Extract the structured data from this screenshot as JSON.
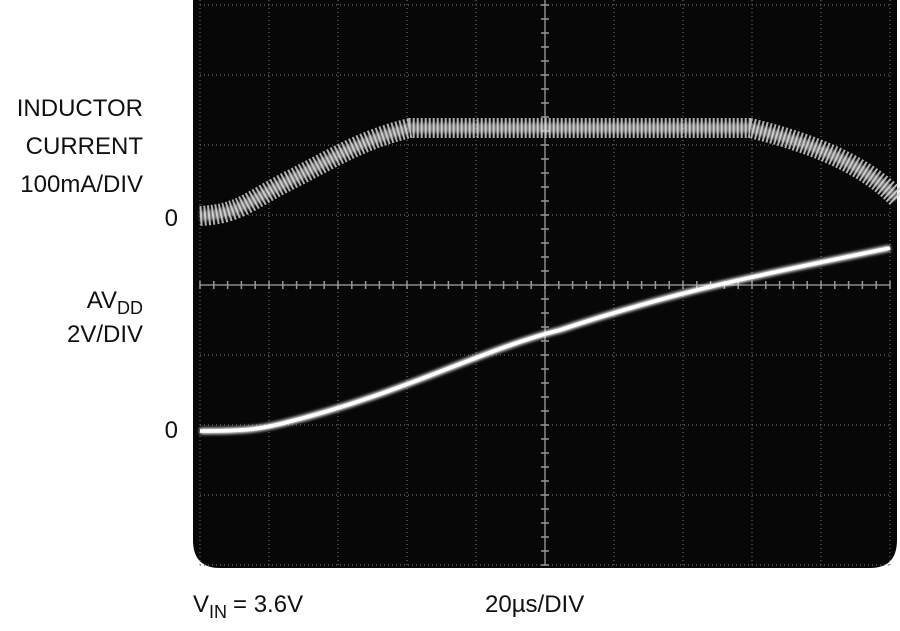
{
  "inductor_current": {
    "line1": "INDUCTOR",
    "line2": "CURRENT",
    "scale": "100mA/DIV",
    "zero": "0"
  },
  "avdd": {
    "name": "AV",
    "subscript": "DD",
    "scale": "2V/DIV",
    "zero": "0"
  },
  "footer": {
    "vin_name": "V",
    "vin_subscript": "IN",
    "vin_value": "= 3.6V",
    "timebase": "20µs/DIV"
  }
}
